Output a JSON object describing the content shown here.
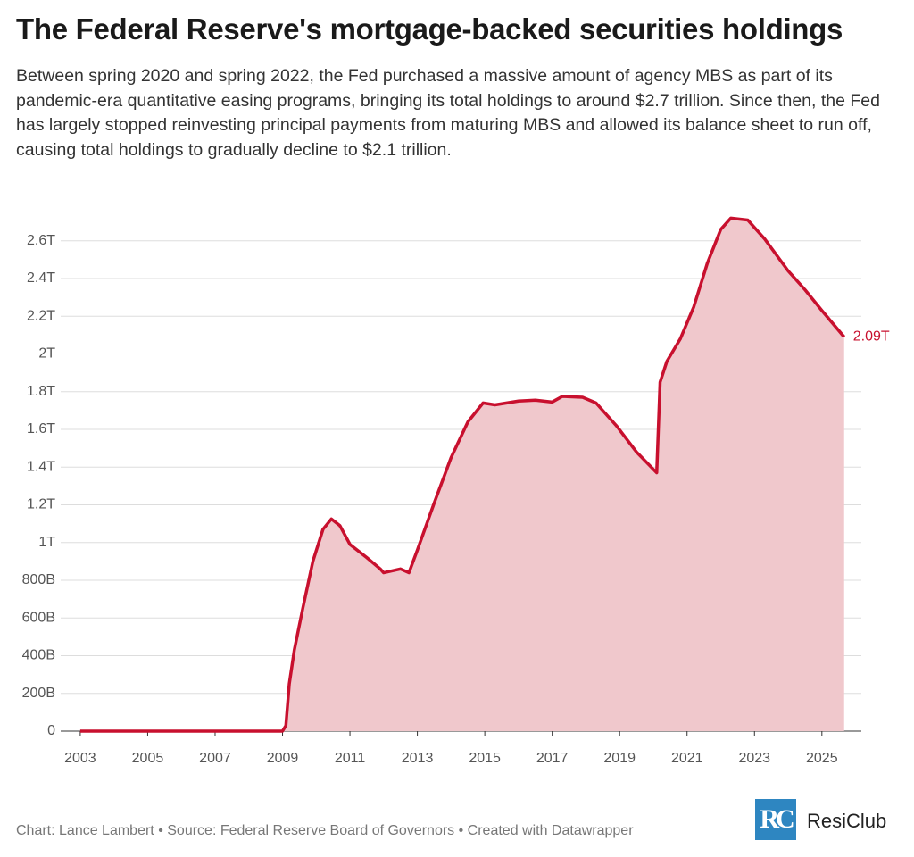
{
  "chart_data": {
    "type": "area",
    "title": "The Federal Reserve's mortgage-backed securities holdings",
    "subtitle": "Between spring 2020 and spring 2022, the Fed purchased a massive amount of agency MBS as part of its pandemic-era quantitative easing programs, bringing its total holdings to around $2.7 trillion. Since then, the Fed has largely stopped reinvesting principal payments from maturing MBS and allowed its balance sheet to run off, causing total holdings to gradually decline to $2.1 trillion.",
    "footer": "Chart: Lance Lambert • Source: Federal Reserve Board of Governors • Created with Datawrapper",
    "logo_mark": "RC",
    "logo_text": "ResiClub",
    "color": "#c8102e",
    "fill_color": "#f0c8cc",
    "grid": true,
    "x": [
      2003.0,
      2009.0,
      2009.1,
      2009.2,
      2009.35,
      2009.6,
      2009.9,
      2010.2,
      2010.45,
      2010.7,
      2011.0,
      2011.5,
      2011.9,
      2012.0,
      2012.5,
      2012.75,
      2013.0,
      2013.5,
      2014.0,
      2014.5,
      2014.95,
      2015.3,
      2016.0,
      2016.5,
      2017.0,
      2017.3,
      2017.9,
      2018.3,
      2018.9,
      2019.5,
      2020.1,
      2020.2,
      2020.4,
      2020.8,
      2021.2,
      2021.6,
      2022.0,
      2022.3,
      2022.8,
      2023.3,
      2024.0,
      2024.5,
      2025.0,
      2025.66
    ],
    "values": [
      0,
      0,
      30,
      250,
      430,
      650,
      900,
      1070,
      1125,
      1090,
      990,
      920,
      860,
      840,
      860,
      840,
      960,
      1210,
      1450,
      1640,
      1740,
      1730,
      1750,
      1755,
      1745,
      1775,
      1770,
      1740,
      1620,
      1480,
      1370,
      1850,
      1960,
      2080,
      2250,
      2480,
      2660,
      2720,
      2710,
      2610,
      2440,
      2340,
      2230,
      2090
    ],
    "value_labels": [
      null,
      null,
      null,
      null,
      null,
      null,
      null,
      null,
      null,
      null,
      null,
      null,
      null,
      null,
      null,
      null,
      null,
      null,
      null,
      null,
      null,
      null,
      null,
      null,
      null,
      null,
      null,
      null,
      null,
      null,
      null,
      null,
      null,
      null,
      null,
      null,
      null,
      null,
      null,
      null,
      null,
      null,
      null,
      "2.09T"
    ],
    "xlim": [
      2002.42,
      2026.17
    ],
    "xticks": [
      2003,
      2005,
      2007,
      2009,
      2011,
      2013,
      2015,
      2017,
      2019,
      2021,
      2023,
      2025
    ],
    "ylim": [
      0,
      2750
    ],
    "yticks": [
      0,
      {
        "value": 200,
        "label": "200B"
      },
      {
        "value": 400,
        "label": "400B"
      },
      {
        "value": 600,
        "label": "600B"
      },
      {
        "value": 800,
        "label": "800B"
      },
      {
        "value": 1000,
        "label": "1T"
      },
      {
        "value": 1200,
        "label": "1.2T"
      },
      {
        "value": 1400,
        "label": "1.4T"
      },
      {
        "value": 1600,
        "label": "1.6T"
      },
      {
        "value": 1800,
        "label": "1.8T"
      },
      {
        "value": 2000,
        "label": "2T"
      },
      {
        "value": 2200,
        "label": "2.2T"
      },
      {
        "value": 2400,
        "label": "2.4T"
      },
      {
        "value": 2600,
        "label": "2.6T"
      }
    ]
  }
}
